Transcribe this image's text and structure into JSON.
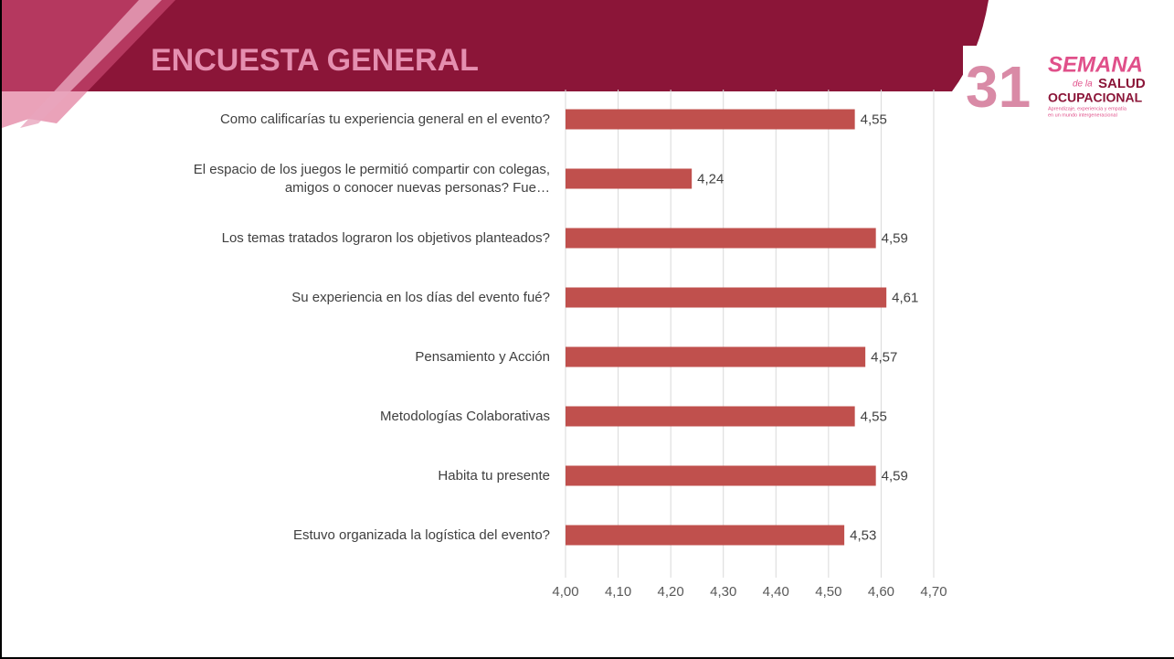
{
  "header": {
    "title": "ENCUESTA GENERAL",
    "logo": {
      "number": "31",
      "line1": "SEMANA",
      "line2a": "de la",
      "line2b": "SALUD",
      "line3": "OCUPACIONAL",
      "line4": "Aprendizaje, experiencia y empatía",
      "line5": "en un mundo intergeneracional"
    }
  },
  "chart_data": {
    "type": "barh",
    "categories": [
      "Como calificarías tu experiencia general en el evento?",
      "El espacio de los juegos le permitió compartir con colegas, amigos o conocer nuevas personas? Fue…",
      "Los temas tratados lograron los objetivos planteados?",
      "Su experiencia en los días del evento fué?",
      "Pensamiento y Acción",
      "Metodologías Colaborativas",
      "Habita tu presente",
      "Estuvo organizada la logística del evento?"
    ],
    "values": [
      4.55,
      4.24,
      4.59,
      4.61,
      4.57,
      4.55,
      4.59,
      4.53
    ],
    "value_labels": [
      "4,55",
      "4,24",
      "4,59",
      "4,61",
      "4,57",
      "4,55",
      "4,59",
      "4,53"
    ],
    "color": "#c0504d",
    "xlim": [
      4.0,
      4.7
    ],
    "xticks": [
      {
        "value": 4.0,
        "label": "4,00"
      },
      {
        "value": 4.1,
        "label": "4,10"
      },
      {
        "value": 4.2,
        "label": "4,20"
      },
      {
        "value": 4.3,
        "label": "4,30"
      },
      {
        "value": 4.4,
        "label": "4,40"
      },
      {
        "value": 4.5,
        "label": "4,50"
      },
      {
        "value": 4.6,
        "label": "4,60"
      },
      {
        "value": 4.7,
        "label": "4,70"
      }
    ],
    "grid": true
  }
}
